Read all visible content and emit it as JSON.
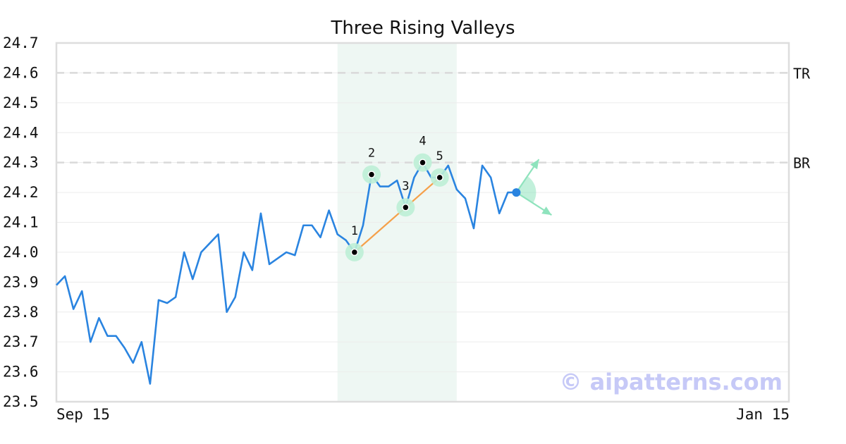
{
  "chart_data": {
    "type": "line",
    "title": "Three Rising Valleys",
    "xlabel": "",
    "ylabel": "",
    "ylim": [
      23.5,
      24.7
    ],
    "y_ticks": [
      "23.5",
      "23.6",
      "23.7",
      "23.8",
      "23.9",
      "24.0",
      "24.1",
      "24.2",
      "24.3",
      "24.4",
      "24.5",
      "24.6",
      "24.7"
    ],
    "x_tick_labels": [
      {
        "index": 0,
        "label": "Sep 15"
      },
      {
        "index": 86,
        "label": "Jan 15"
      }
    ],
    "grid": true,
    "series": [
      {
        "color": "#2a84e0",
        "values": [
          23.89,
          23.92,
          23.81,
          23.87,
          23.7,
          23.78,
          23.72,
          23.72,
          23.68,
          23.63,
          23.7,
          23.56,
          23.84,
          23.83,
          23.85,
          24.0,
          23.91,
          24.0,
          24.03,
          24.06,
          23.8,
          23.85,
          24.0,
          23.94,
          24.13,
          23.96,
          23.98,
          24.0,
          23.99,
          24.09,
          24.09,
          24.05,
          24.14,
          24.06,
          24.04,
          24.0,
          24.09,
          24.26,
          24.22,
          24.22,
          24.24,
          24.15,
          24.25,
          24.3,
          24.25,
          24.25,
          24.29,
          24.21,
          24.18,
          24.08,
          24.29,
          24.25,
          24.13,
          24.2,
          24.2
        ]
      }
    ],
    "reference_lines": [
      {
        "label": "TR",
        "value": 24.6
      },
      {
        "label": "BR",
        "value": 24.3
      }
    ],
    "highlight_range": {
      "start_index": 33,
      "end_index": 47,
      "color": "#eef7f3"
    },
    "pattern_points": [
      {
        "label": "1",
        "index": 35,
        "value": 24.0
      },
      {
        "label": "2",
        "index": 37,
        "value": 24.26
      },
      {
        "label": "3",
        "index": 41,
        "value": 24.15
      },
      {
        "label": "4",
        "index": 43,
        "value": 24.3
      },
      {
        "label": "5",
        "index": 45,
        "value": 24.25
      }
    ],
    "trend_line": {
      "from_point": "1",
      "to_point": "5",
      "color": "#f5a04a"
    },
    "current_point": {
      "index": 54,
      "value": 24.2,
      "color": "#2a84e0"
    },
    "projection_color": "#8fe3bd",
    "watermark": "© aipatterns.com"
  }
}
